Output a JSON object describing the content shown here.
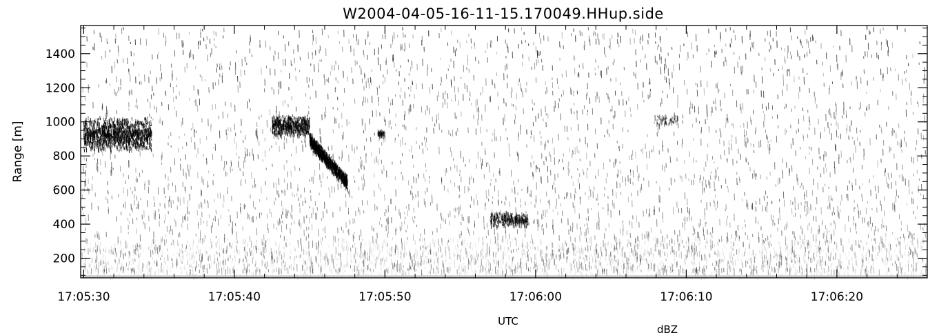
{
  "chart_data": {
    "type": "heatmap",
    "title": "W2004-04-05-16-11-15.170049.HHup.side",
    "xlabel": "UTC",
    "ylabel": "Range [m]",
    "colorbar_label": "dBZ",
    "colormap": "grayscale (white = low, black = high)",
    "x_ticks": [
      "17:05:30",
      "17:05:40",
      "17:05:50",
      "17:06:00",
      "17:06:10",
      "17:06:20"
    ],
    "x_range_seconds_after_17_05_30": [
      -0.2,
      56.0
    ],
    "y_ticks": [
      200,
      400,
      600,
      800,
      1000,
      1200,
      1400
    ],
    "ylim": [
      85,
      1565
    ],
    "echo_features": [
      {
        "t_start": 0.0,
        "t_end": 4.5,
        "r_low": 830,
        "r_high": 1040,
        "strength": 0.95
      },
      {
        "t_start": 12.5,
        "t_end": 15.0,
        "r_low": 920,
        "r_high": 1050,
        "strength": 0.8
      },
      {
        "t_start": 15.0,
        "t_end": 17.5,
        "r_low": 650,
        "r_high": 900,
        "strength": 0.8
      },
      {
        "t_start": 19.5,
        "t_end": 20.0,
        "r_low": 920,
        "r_high": 960,
        "strength": 0.6
      },
      {
        "t_start": 27.0,
        "t_end": 29.5,
        "r_low": 390,
        "r_high": 480,
        "strength": 0.65
      },
      {
        "t_start": 38.0,
        "t_end": 39.5,
        "r_low": 980,
        "r_high": 1050,
        "strength": 0.3
      }
    ],
    "grid": false,
    "legend": "none"
  },
  "colors": {
    "echo": "#000000",
    "background": "#ffffff",
    "axis": "#000000"
  }
}
